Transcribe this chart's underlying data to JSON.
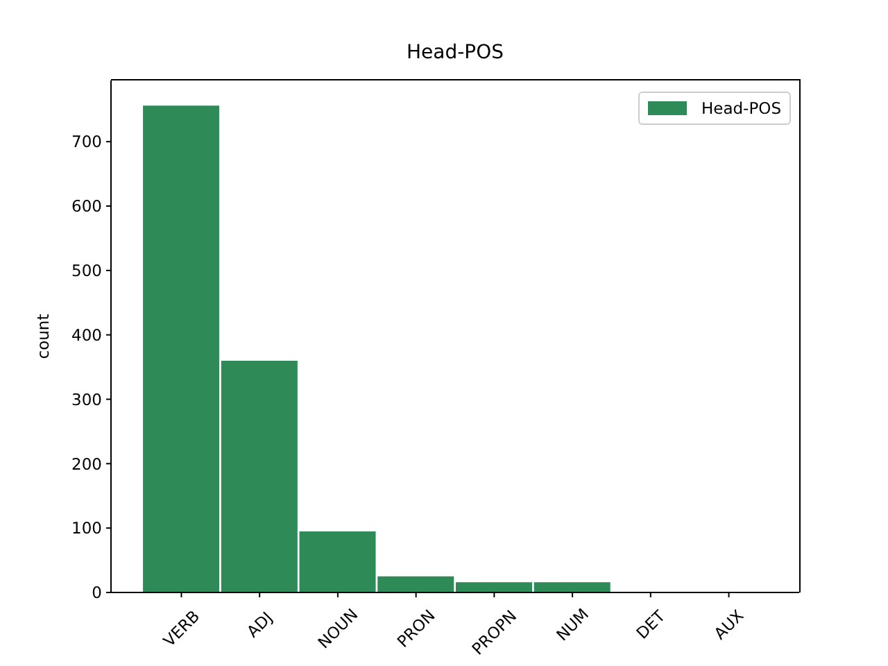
{
  "chart_data": {
    "type": "bar",
    "title": "Head-POS",
    "ylabel": "count",
    "categories": [
      "VERB",
      "ADJ",
      "NOUN",
      "PRON",
      "PROPN",
      "NUM",
      "DET",
      "AUX"
    ],
    "series": [
      {
        "name": "Head-POS",
        "color": "#2e8b57",
        "values": [
          757,
          361,
          96,
          26,
          17,
          17,
          0,
          0
        ]
      }
    ],
    "ylim": [
      0,
      795
    ],
    "yticks": [
      0,
      100,
      200,
      300,
      400,
      500,
      600,
      700
    ],
    "legend": "top right"
  }
}
